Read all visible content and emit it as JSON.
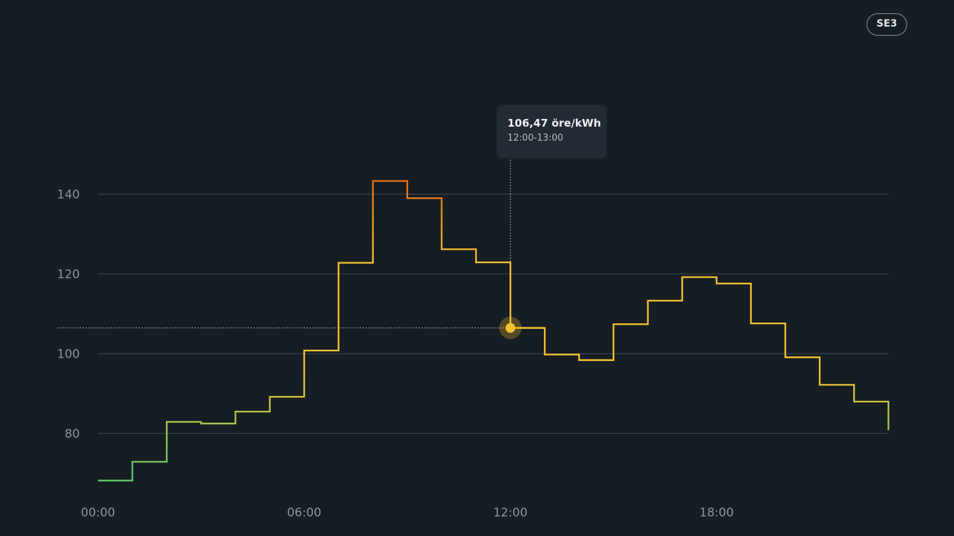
{
  "zone_selector": {
    "label": "SE3"
  },
  "tooltip": {
    "value_label": "106,47 öre/kWh",
    "range_label": "12:00-13:00",
    "hour_index": 12,
    "value": 106.47
  },
  "colors": {
    "background": "#161d23",
    "low": "#5ec46b",
    "mid": "#f3c230",
    "high": "#e0711c",
    "grid": "#3a4249",
    "tooltip_bg": "#232a33"
  },
  "chart_data": {
    "type": "line",
    "step": true,
    "title": "",
    "xlabel": "",
    "ylabel": "",
    "ylim": [
      64,
      150
    ],
    "xlim": [
      0,
      23
    ],
    "yticks": [
      80,
      100,
      120,
      140
    ],
    "grid": true,
    "x": [
      0,
      1,
      2,
      3,
      4,
      5,
      6,
      7,
      8,
      9,
      10,
      11,
      12,
      13,
      14,
      15,
      16,
      17,
      18,
      19,
      20,
      21,
      22,
      23
    ],
    "xtick_labels": [
      "00:00",
      "06:00",
      "12:00",
      "18:00"
    ],
    "xtick_positions": [
      0,
      6,
      12,
      18
    ],
    "series": [
      {
        "values": [
          68.2,
          72.9,
          82.9,
          82.5,
          85.5,
          89.2,
          100.8,
          122.8,
          143.3,
          139.0,
          126.2,
          122.9,
          106.47,
          99.8,
          98.4,
          107.4,
          113.3,
          119.2,
          117.6,
          107.6,
          99.1,
          92.2,
          88.0,
          81.0
        ]
      }
    ]
  }
}
